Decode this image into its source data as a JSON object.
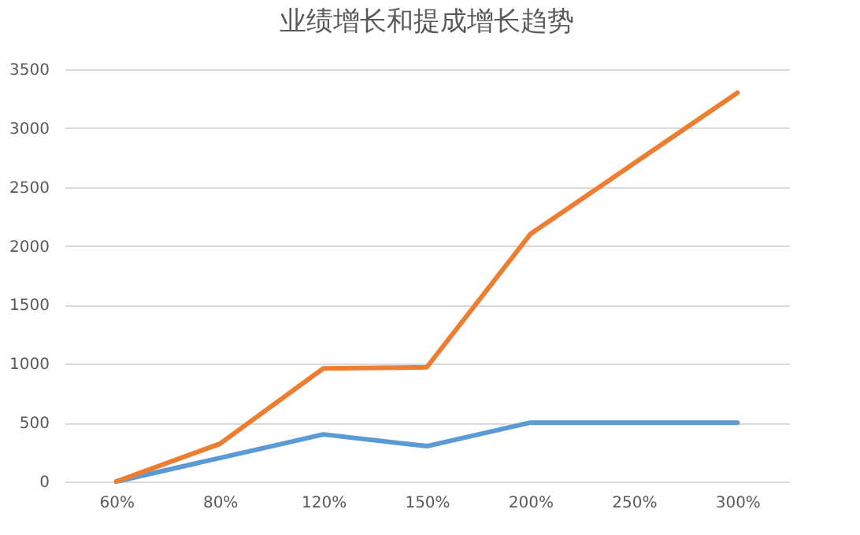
{
  "chart_data": {
    "type": "line",
    "title": "业绩增长和提成增长趋势",
    "categories": [
      "60%",
      "80%",
      "120%",
      "150%",
      "200%",
      "250%",
      "300%"
    ],
    "series": [
      {
        "color": "#5b9bd5",
        "values": [
          0,
          200,
          400,
          300,
          500,
          500,
          500
        ]
      },
      {
        "color": "#ed7d31",
        "values": [
          0,
          320,
          960,
          970,
          2100,
          2700,
          3300
        ]
      }
    ],
    "ylim": [
      0,
      3500
    ],
    "yticks": [
      0,
      500,
      1000,
      1500,
      2000,
      2500,
      3000,
      3500
    ],
    "grid": "y",
    "legend": false,
    "marker": "none",
    "line_style": "solid"
  }
}
